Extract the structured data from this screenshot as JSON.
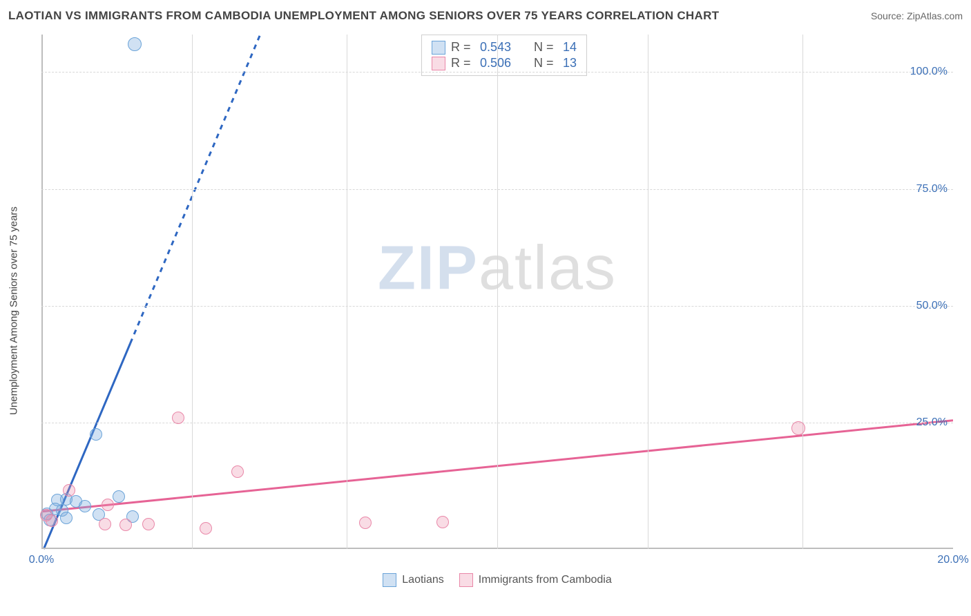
{
  "header": {
    "title": "LAOTIAN VS IMMIGRANTS FROM CAMBODIA UNEMPLOYMENT AMONG SENIORS OVER 75 YEARS CORRELATION CHART",
    "source": "Source: ZipAtlas.com"
  },
  "watermark": {
    "part1": "ZIP",
    "part2": "atlas"
  },
  "chart": {
    "type": "scatter",
    "background_color": "#ffffff",
    "grid_color": "#d8d8d8",
    "axis_color": "#bdbdbd",
    "tick_label_color": "#3b6fb6",
    "tick_fontsize": 16,
    "ylabel": "Unemployment Among Seniors over 75 years",
    "ylabel_fontsize": 15,
    "ylabel_color": "#444444",
    "xlim": [
      0,
      20
    ],
    "ylim": [
      -2,
      108
    ],
    "yticks": [
      {
        "v": 25,
        "label": "25.0%"
      },
      {
        "v": 50,
        "label": "50.0%"
      },
      {
        "v": 75,
        "label": "75.0%"
      },
      {
        "v": 100,
        "label": "100.0%"
      }
    ],
    "xticks_major": [
      {
        "v": 0,
        "label": "0.0%"
      },
      {
        "v": 20,
        "label": "20.0%"
      }
    ],
    "xticks_minor_v": [
      3.3,
      6.7,
      10,
      13.3,
      16.7
    ],
    "series": {
      "blue": {
        "name": "Laotians",
        "marker_fill": "rgba(120,170,220,0.35)",
        "marker_stroke": "#6aa3d8",
        "marker_r": 9,
        "trend_color": "#2e67c2",
        "trend_width": 3,
        "trend_solid_to_x": 1.95,
        "trend": {
          "x1": 0.05,
          "y1": -2,
          "x2": 4.8,
          "y2": 108
        },
        "R": "0.543",
        "N": "14",
        "points": [
          {
            "x": 2.05,
            "y": 106,
            "r": 10
          },
          {
            "x": 1.2,
            "y": 22.5
          },
          {
            "x": 1.7,
            "y": 9.2
          },
          {
            "x": 0.35,
            "y": 8.5
          },
          {
            "x": 0.55,
            "y": 8.6
          },
          {
            "x": 0.75,
            "y": 8.2
          },
          {
            "x": 0.95,
            "y": 7.2
          },
          {
            "x": 0.45,
            "y": 6.2
          },
          {
            "x": 0.3,
            "y": 6.5
          },
          {
            "x": 0.12,
            "y": 5.5
          },
          {
            "x": 1.25,
            "y": 5.4
          },
          {
            "x": 2.0,
            "y": 5.0
          },
          {
            "x": 0.18,
            "y": 4.2
          },
          {
            "x": 0.55,
            "y": 4.6
          }
        ]
      },
      "pink": {
        "name": "Immigrants from Cambodia",
        "marker_fill": "rgba(235,140,170,0.30)",
        "marker_stroke": "#e987a8",
        "marker_r": 9,
        "trend_color": "#e66395",
        "trend_width": 3,
        "trend": {
          "x1": 0,
          "y1": 6.0,
          "x2": 20,
          "y2": 25.5
        },
        "R": "0.506",
        "N": "13",
        "points": [
          {
            "x": 16.6,
            "y": 23.8,
            "r": 10
          },
          {
            "x": 3.0,
            "y": 26.0
          },
          {
            "x": 4.3,
            "y": 14.5
          },
          {
            "x": 0.6,
            "y": 10.5
          },
          {
            "x": 1.45,
            "y": 7.4
          },
          {
            "x": 0.1,
            "y": 5.3
          },
          {
            "x": 1.4,
            "y": 3.3
          },
          {
            "x": 1.85,
            "y": 3.2
          },
          {
            "x": 2.35,
            "y": 3.3
          },
          {
            "x": 3.6,
            "y": 2.4
          },
          {
            "x": 7.1,
            "y": 3.6
          },
          {
            "x": 8.8,
            "y": 3.8
          },
          {
            "x": 0.22,
            "y": 4.1
          }
        ]
      }
    },
    "legend_top": {
      "border_color": "#cfcfcf",
      "rows": [
        {
          "series": "blue",
          "r_label": "R =",
          "n_label": "N ="
        },
        {
          "series": "pink",
          "r_label": "R =",
          "n_label": "N ="
        }
      ]
    },
    "legend_bottom": {
      "items": [
        {
          "series": "blue"
        },
        {
          "series": "pink"
        }
      ]
    }
  }
}
